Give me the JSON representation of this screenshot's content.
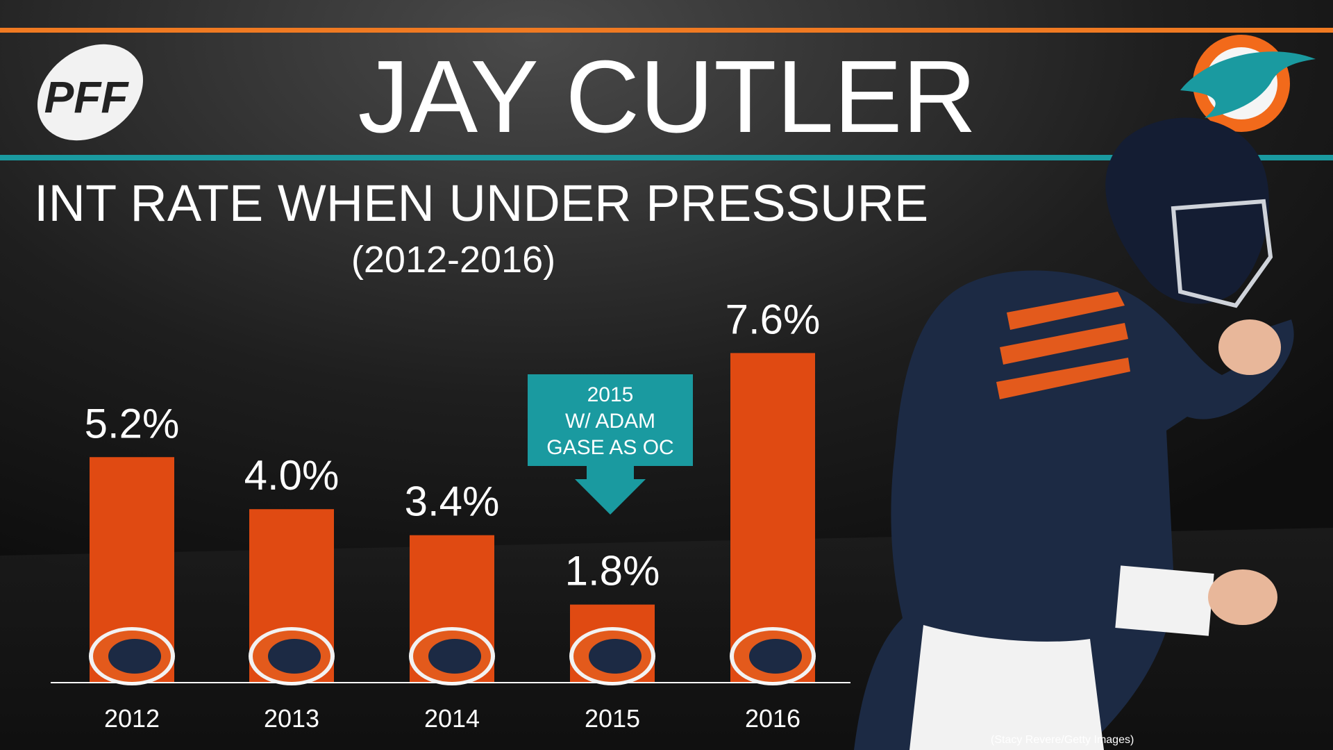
{
  "brand": "PFF",
  "chart_data": {
    "type": "bar",
    "title": "JAY CUTLER",
    "subtitle": "INT RATE WHEN UNDER PRESSURE",
    "period": "(2012-2016)",
    "categories": [
      "2012",
      "2013",
      "2014",
      "2015",
      "2016"
    ],
    "values": [
      5.2,
      4.0,
      3.4,
      1.8,
      7.6
    ],
    "value_labels": [
      "5.2%",
      "4.0%",
      "3.4%",
      "1.8%",
      "7.6%"
    ],
    "color": "#e04a12",
    "annotation": [
      "2015",
      "W/ ADAM",
      "GASE AS OC"
    ],
    "annotation_color": "#1a9aa0"
  },
  "credit": "(Stacy Revere/Getty Images)"
}
